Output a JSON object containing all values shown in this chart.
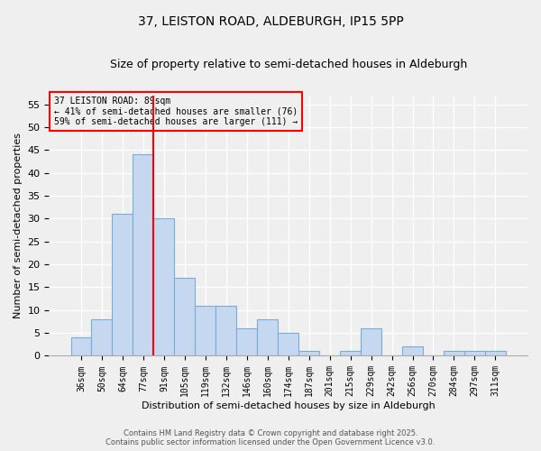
{
  "title1": "37, LEISTON ROAD, ALDEBURGH, IP15 5PP",
  "title2": "Size of property relative to semi-detached houses in Aldeburgh",
  "xlabel": "Distribution of semi-detached houses by size in Aldeburgh",
  "ylabel": "Number of semi-detached properties",
  "categories": [
    "36sqm",
    "50sqm",
    "64sqm",
    "77sqm",
    "91sqm",
    "105sqm",
    "119sqm",
    "132sqm",
    "146sqm",
    "160sqm",
    "174sqm",
    "187sqm",
    "201sqm",
    "215sqm",
    "229sqm",
    "242sqm",
    "256sqm",
    "270sqm",
    "284sqm",
    "297sqm",
    "311sqm"
  ],
  "values": [
    4,
    8,
    31,
    44,
    30,
    17,
    11,
    11,
    6,
    8,
    5,
    1,
    0,
    1,
    6,
    0,
    2,
    0,
    1,
    1,
    1
  ],
  "bar_color": "#c5d8f0",
  "bar_edge_color": "#7aadd4",
  "vline_index": 3.5,
  "vline_color": "red",
  "annotation_title": "37 LEISTON ROAD: 89sqm",
  "annotation_line1": "← 41% of semi-detached houses are smaller (76)",
  "annotation_line2": "59% of semi-detached houses are larger (111) →",
  "annotation_box_edge_color": "red",
  "ylim": [
    0,
    57
  ],
  "yticks": [
    0,
    5,
    10,
    15,
    20,
    25,
    30,
    35,
    40,
    45,
    50,
    55
  ],
  "footnote1": "Contains HM Land Registry data © Crown copyright and database right 2025.",
  "footnote2": "Contains public sector information licensed under the Open Government Licence v3.0.",
  "bg_color": "#efefef",
  "title_fontsize": 10,
  "subtitle_fontsize": 9,
  "tick_fontsize": 7,
  "ytick_fontsize": 8,
  "xlabel_fontsize": 8,
  "ylabel_fontsize": 8,
  "annotation_fontsize": 7,
  "footnote_fontsize": 6
}
